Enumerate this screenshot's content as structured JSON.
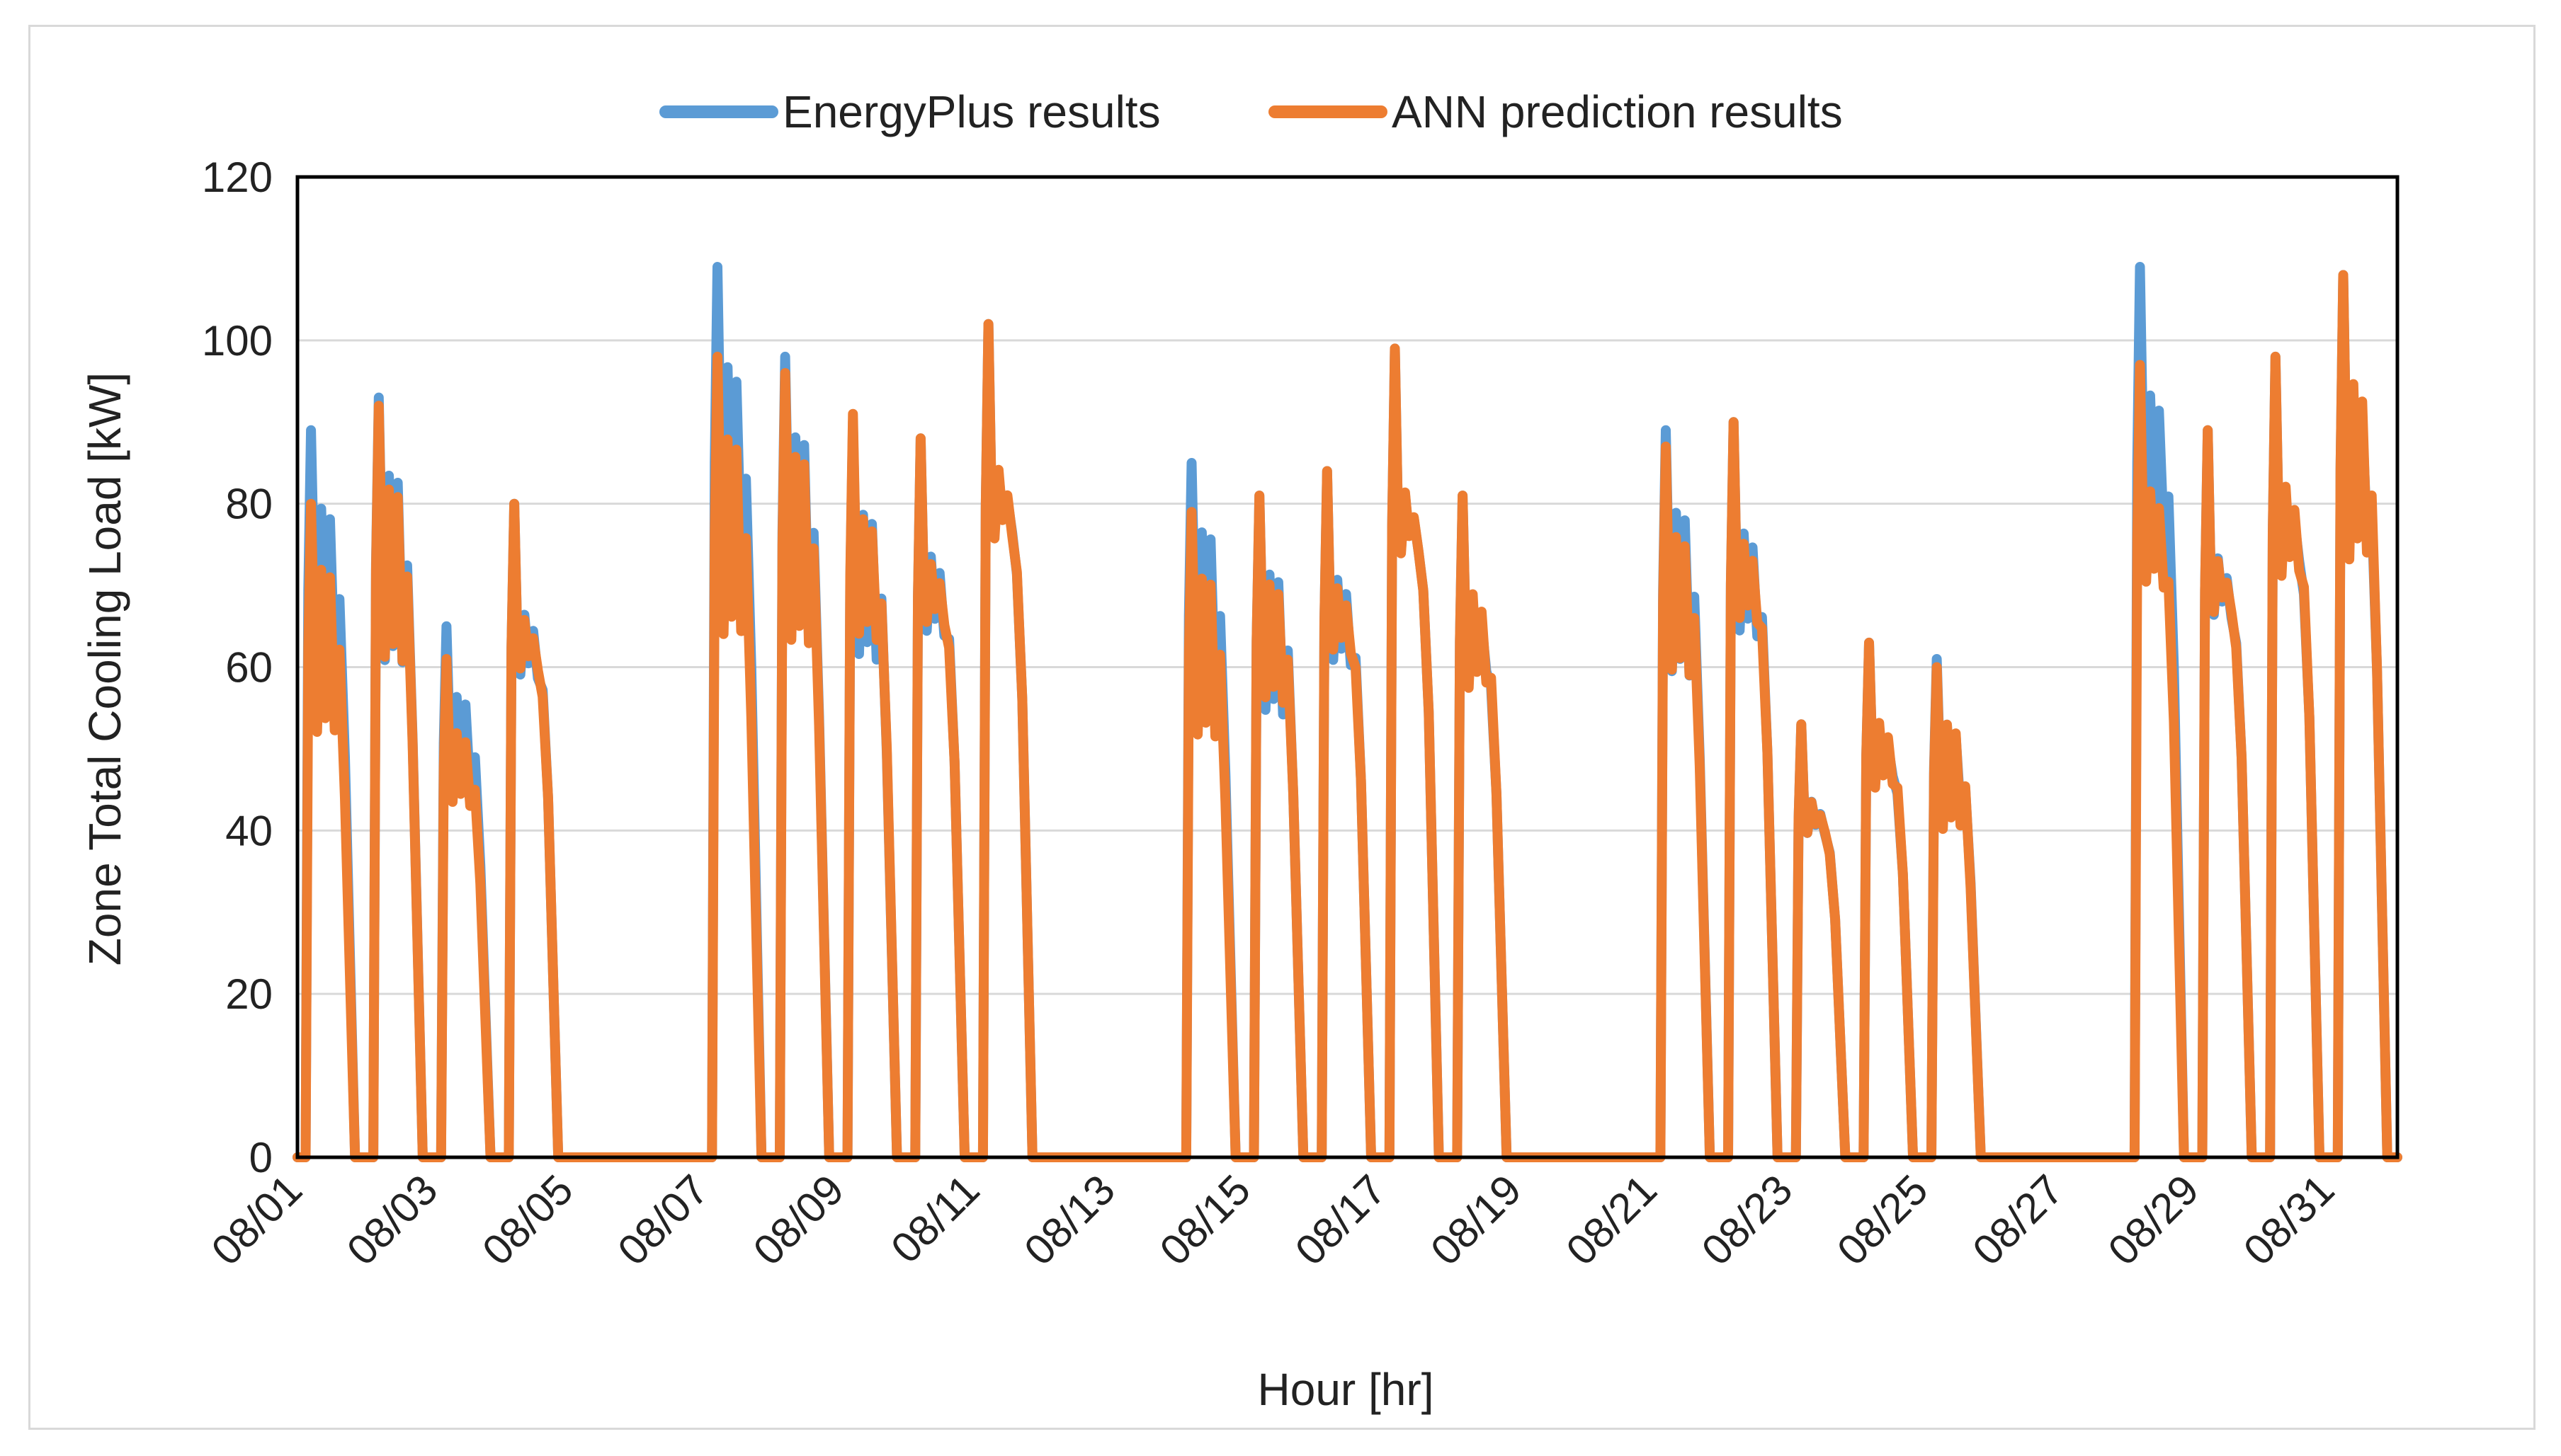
{
  "chart_data": {
    "type": "line",
    "title": "",
    "xlabel": "Hour [hr]",
    "ylabel": "Zone Total Cooling Load [kW]",
    "ylim": [
      0,
      120
    ],
    "yticks": [
      0,
      20,
      40,
      60,
      80,
      100,
      120
    ],
    "xlim_days": [
      1,
      32
    ],
    "xtick_labels": [
      "08/01",
      "08/03",
      "08/05",
      "08/07",
      "08/09",
      "08/11",
      "08/13",
      "08/15",
      "08/17",
      "08/19",
      "08/21",
      "08/23",
      "08/25",
      "08/27",
      "08/29",
      "08/31"
    ],
    "xtick_days": [
      1,
      3,
      5,
      7,
      9,
      11,
      13,
      15,
      17,
      19,
      21,
      23,
      25,
      27,
      29,
      31
    ],
    "grid": "horizontal",
    "legend_position": "top",
    "series": [
      {
        "name": "EnergyPlus results",
        "color": "#5B9BD5"
      },
      {
        "name": "ANN prediction results",
        "color": "#ED7D31"
      }
    ],
    "daily_peaks": [
      {
        "day": 1,
        "energyplus": 89,
        "ann": 80
      },
      {
        "day": 2,
        "energyplus": 93,
        "ann": 92
      },
      {
        "day": 3,
        "energyplus": 65,
        "ann": 61
      },
      {
        "day": 4,
        "energyplus": 80,
        "ann": 80
      },
      {
        "day": 7,
        "energyplus": 109,
        "ann": 98
      },
      {
        "day": 8,
        "energyplus": 98,
        "ann": 96
      },
      {
        "day": 9,
        "energyplus": 90,
        "ann": 91
      },
      {
        "day": 10,
        "energyplus": 88,
        "ann": 88
      },
      {
        "day": 11,
        "energyplus": 102,
        "ann": 102
      },
      {
        "day": 14,
        "energyplus": 85,
        "ann": 79
      },
      {
        "day": 15,
        "energyplus": 81,
        "ann": 81
      },
      {
        "day": 16,
        "energyplus": 84,
        "ann": 84
      },
      {
        "day": 17,
        "energyplus": 99,
        "ann": 99
      },
      {
        "day": 18,
        "energyplus": 81,
        "ann": 81
      },
      {
        "day": 21,
        "energyplus": 89,
        "ann": 87
      },
      {
        "day": 22,
        "energyplus": 90,
        "ann": 90
      },
      {
        "day": 23,
        "energyplus": 53,
        "ann": 53
      },
      {
        "day": 24,
        "energyplus": 63,
        "ann": 63
      },
      {
        "day": 25,
        "energyplus": 61,
        "ann": 60
      },
      {
        "day": 28,
        "energyplus": 109,
        "ann": 97
      },
      {
        "day": 29,
        "energyplus": 89,
        "ann": 89
      },
      {
        "day": 30,
        "energyplus": 98,
        "ann": 98
      },
      {
        "day": 31,
        "energyplus": 108,
        "ann": 108
      }
    ]
  }
}
